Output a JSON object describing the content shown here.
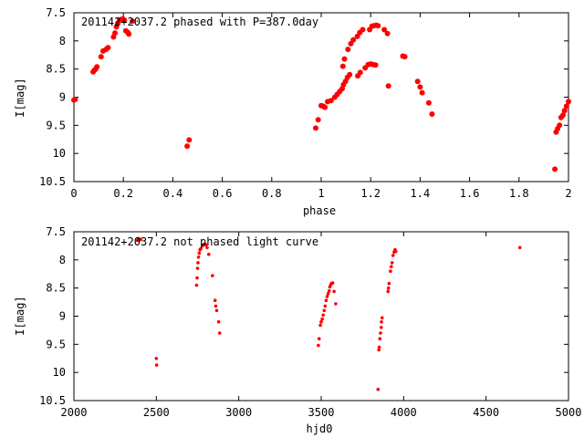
{
  "chart_data": [
    {
      "type": "scatter",
      "title": "201142+2037.2 phased with P=387.0day",
      "xlabel": "phase",
      "ylabel": "I[mag]",
      "xlim": [
        0,
        2
      ],
      "ylim": [
        10.5,
        7.5
      ],
      "y_inverted": true,
      "xticks": [
        0,
        0.2,
        0.4,
        0.6,
        0.8,
        1,
        1.2,
        1.4,
        1.6,
        1.8,
        2
      ],
      "xtick_labels": [
        "0",
        "0.2",
        "0.4",
        "0.6",
        "0.8",
        "1",
        "1.2",
        "1.4",
        "1.6",
        "1.8",
        "2"
      ],
      "yticks": [
        7.5,
        8,
        8.5,
        9,
        9.5,
        10,
        10.5
      ],
      "ytick_labels": [
        "7.5",
        "8",
        "8.5",
        "9",
        "9.5",
        "10",
        "10.5"
      ],
      "grid": false,
      "marker_color": "#ff0000",
      "points": [
        [
          0.0,
          9.05
        ],
        [
          0.005,
          9.04
        ],
        [
          0.078,
          8.55
        ],
        [
          0.083,
          8.52
        ],
        [
          0.088,
          8.5
        ],
        [
          0.093,
          8.46
        ],
        [
          0.11,
          8.28
        ],
        [
          0.118,
          8.18
        ],
        [
          0.13,
          8.15
        ],
        [
          0.138,
          8.12
        ],
        [
          0.16,
          7.93
        ],
        [
          0.166,
          7.86
        ],
        [
          0.172,
          7.75
        ],
        [
          0.178,
          7.68
        ],
        [
          0.184,
          7.63
        ],
        [
          0.19,
          7.62
        ],
        [
          0.198,
          7.61
        ],
        [
          0.204,
          7.63
        ],
        [
          0.21,
          7.82
        ],
        [
          0.218,
          7.85
        ],
        [
          0.222,
          7.88
        ],
        [
          0.236,
          7.65
        ],
        [
          0.458,
          9.87
        ],
        [
          0.466,
          9.76
        ],
        [
          0.978,
          9.55
        ],
        [
          0.988,
          9.4
        ],
        [
          1.0,
          9.15
        ],
        [
          1.008,
          9.16
        ],
        [
          1.015,
          9.18
        ],
        [
          1.026,
          9.08
        ],
        [
          1.04,
          9.06
        ],
        [
          1.055,
          9.0
        ],
        [
          1.065,
          8.95
        ],
        [
          1.075,
          8.9
        ],
        [
          1.085,
          8.85
        ],
        [
          1.09,
          8.78
        ],
        [
          1.098,
          8.72
        ],
        [
          1.106,
          8.65
        ],
        [
          1.115,
          8.6
        ],
        [
          1.088,
          8.45
        ],
        [
          1.094,
          8.32
        ],
        [
          1.108,
          8.15
        ],
        [
          1.12,
          8.05
        ],
        [
          1.13,
          7.98
        ],
        [
          1.146,
          7.92
        ],
        [
          1.156,
          7.85
        ],
        [
          1.168,
          7.8
        ],
        [
          1.148,
          8.62
        ],
        [
          1.158,
          8.56
        ],
        [
          1.178,
          8.48
        ],
        [
          1.19,
          8.42
        ],
        [
          1.2,
          8.41
        ],
        [
          1.21,
          8.42
        ],
        [
          1.22,
          8.43
        ],
        [
          1.196,
          7.8
        ],
        [
          1.205,
          7.74
        ],
        [
          1.213,
          7.73
        ],
        [
          1.222,
          7.72
        ],
        [
          1.23,
          7.73
        ],
        [
          1.255,
          7.8
        ],
        [
          1.268,
          7.87
        ],
        [
          1.272,
          8.8
        ],
        [
          1.33,
          8.27
        ],
        [
          1.338,
          8.28
        ],
        [
          1.39,
          8.72
        ],
        [
          1.4,
          8.82
        ],
        [
          1.408,
          8.92
        ],
        [
          1.435,
          9.1
        ],
        [
          1.448,
          9.3
        ],
        [
          1.945,
          10.28
        ],
        [
          1.95,
          9.62
        ],
        [
          1.956,
          9.56
        ],
        [
          1.964,
          9.5
        ],
        [
          1.97,
          9.36
        ],
        [
          1.978,
          9.32
        ],
        [
          1.984,
          9.24
        ],
        [
          1.992,
          9.16
        ],
        [
          2.0,
          9.08
        ]
      ]
    },
    {
      "type": "scatter",
      "title": "201142+2037.2 not phased light curve",
      "xlabel": "hjd0",
      "ylabel": "I[mag]",
      "xlim": [
        2000,
        5000
      ],
      "ylim": [
        10.5,
        7.5
      ],
      "y_inverted": true,
      "xticks": [
        2000,
        2500,
        3000,
        3500,
        4000,
        4500,
        5000
      ],
      "xtick_labels": [
        "2000",
        "2500",
        "3000",
        "3500",
        "4000",
        "4500",
        "5000"
      ],
      "yticks": [
        7.5,
        8,
        8.5,
        9,
        9.5,
        10,
        10.5
      ],
      "ytick_labels": [
        "7.5",
        "8",
        "8.5",
        "9",
        "9.5",
        "10",
        "10.5"
      ],
      "grid": false,
      "marker_color": "#ff0000",
      "points": [
        [
          2385,
          7.65
        ],
        [
          2392,
          7.62
        ],
        [
          2398,
          7.63
        ],
        [
          2405,
          7.64
        ],
        [
          2500,
          9.75
        ],
        [
          2502,
          9.87
        ],
        [
          2744,
          8.45
        ],
        [
          2747,
          8.32
        ],
        [
          2750,
          8.15
        ],
        [
          2753,
          8.05
        ],
        [
          2756,
          7.95
        ],
        [
          2760,
          7.88
        ],
        [
          2765,
          7.82
        ],
        [
          2770,
          7.8
        ],
        [
          2780,
          7.75
        ],
        [
          2790,
          7.72
        ],
        [
          2800,
          7.73
        ],
        [
          2808,
          7.78
        ],
        [
          2818,
          7.9
        ],
        [
          2840,
          8.28
        ],
        [
          2856,
          8.72
        ],
        [
          2860,
          8.82
        ],
        [
          2866,
          8.9
        ],
        [
          2878,
          9.1
        ],
        [
          2884,
          9.3
        ],
        [
          3483,
          9.52
        ],
        [
          3487,
          9.4
        ],
        [
          3495,
          9.16
        ],
        [
          3500,
          9.1
        ],
        [
          3506,
          9.05
        ],
        [
          3512,
          8.98
        ],
        [
          3518,
          8.9
        ],
        [
          3524,
          8.82
        ],
        [
          3530,
          8.72
        ],
        [
          3536,
          8.65
        ],
        [
          3542,
          8.6
        ],
        [
          3548,
          8.55
        ],
        [
          3552,
          8.48
        ],
        [
          3558,
          8.44
        ],
        [
          3562,
          8.42
        ],
        [
          3570,
          8.41
        ],
        [
          3578,
          8.56
        ],
        [
          3588,
          8.78
        ],
        [
          3845,
          10.3
        ],
        [
          3850,
          9.6
        ],
        [
          3852,
          9.55
        ],
        [
          3856,
          9.4
        ],
        [
          3860,
          9.3
        ],
        [
          3864,
          9.2
        ],
        [
          3866,
          9.1
        ],
        [
          3870,
          9.03
        ],
        [
          3905,
          8.56
        ],
        [
          3908,
          8.5
        ],
        [
          3912,
          8.42
        ],
        [
          3920,
          8.2
        ],
        [
          3925,
          8.12
        ],
        [
          3930,
          8.05
        ],
        [
          3936,
          7.92
        ],
        [
          3942,
          7.86
        ],
        [
          3948,
          7.82
        ],
        [
          3953,
          7.85
        ],
        [
          4705,
          7.78
        ]
      ]
    }
  ]
}
